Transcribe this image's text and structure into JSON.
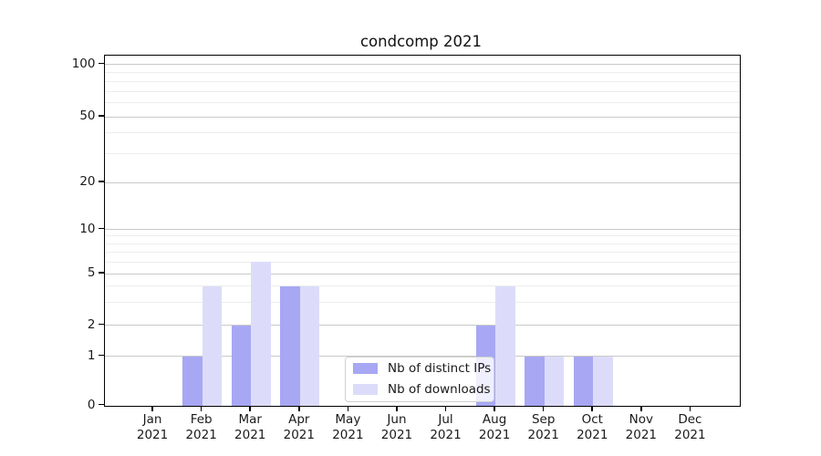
{
  "chart_data": {
    "type": "bar",
    "title": "condcomp 2021",
    "x_year": "2021",
    "categories": [
      "Jan",
      "Feb",
      "Mar",
      "Apr",
      "May",
      "Jun",
      "Jul",
      "Aug",
      "Sep",
      "Oct",
      "Nov",
      "Dec"
    ],
    "series": [
      {
        "name": "Nb of distinct IPs",
        "color": "#a7a7f4",
        "values": [
          0,
          1,
          2,
          4,
          0,
          0,
          0,
          2,
          1,
          1,
          0,
          0
        ]
      },
      {
        "name": "Nb of downloads",
        "color": "#dcdcfa",
        "values": [
          0,
          4,
          6,
          4,
          0,
          0,
          0,
          4,
          1,
          1,
          0,
          0
        ]
      }
    ],
    "y_axis": {
      "scale": "log-like",
      "ticks": [
        0,
        1,
        2,
        5,
        10,
        20,
        50,
        100
      ],
      "minor_gridlines": [
        3,
        4,
        6,
        7,
        8,
        9,
        30,
        40,
        60,
        70,
        80,
        90
      ]
    },
    "legend": {
      "position": "lower-center",
      "entries": [
        "Nb of distinct IPs",
        "Nb of downloads"
      ]
    },
    "grid": {
      "major_color": "#c9c9c9",
      "minor_color": "#ededed"
    },
    "axis_color": "#000000"
  }
}
